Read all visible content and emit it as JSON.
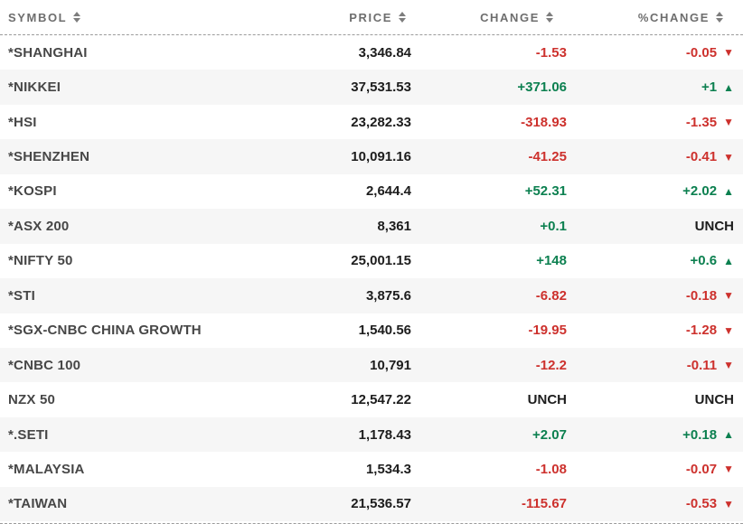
{
  "colors": {
    "up": "#0c8050",
    "down": "#cd312d",
    "neutral": "#1d1d1d"
  },
  "icons": {
    "up_arrow": "▲",
    "down_arrow": "▼",
    "sort": "sort-up-down-triangles"
  },
  "table": {
    "columns": [
      {
        "key": "symbol",
        "label": "SYMBOL"
      },
      {
        "key": "price",
        "label": "PRICE"
      },
      {
        "key": "change",
        "label": "CHANGE"
      },
      {
        "key": "pct_change",
        "label": "%CHANGE"
      }
    ],
    "rows": [
      {
        "symbol": "*SHANGHAI",
        "price": "3,346.84",
        "change": "-1.53",
        "change_dir": "down",
        "pct_change": "-0.05",
        "pct_dir": "down"
      },
      {
        "symbol": "*NIKKEI",
        "price": "37,531.53",
        "change": "+371.06",
        "change_dir": "up",
        "pct_change": "+1",
        "pct_dir": "up"
      },
      {
        "symbol": "*HSI",
        "price": "23,282.33",
        "change": "-318.93",
        "change_dir": "down",
        "pct_change": "-1.35",
        "pct_dir": "down"
      },
      {
        "symbol": "*SHENZHEN",
        "price": "10,091.16",
        "change": "-41.25",
        "change_dir": "down",
        "pct_change": "-0.41",
        "pct_dir": "down"
      },
      {
        "symbol": "*KOSPI",
        "price": "2,644.4",
        "change": "+52.31",
        "change_dir": "up",
        "pct_change": "+2.02",
        "pct_dir": "up"
      },
      {
        "symbol": "*ASX 200",
        "price": "8,361",
        "change": "+0.1",
        "change_dir": "up",
        "pct_change": "UNCH",
        "pct_dir": "unch"
      },
      {
        "symbol": "*NIFTY 50",
        "price": "25,001.15",
        "change": "+148",
        "change_dir": "up",
        "pct_change": "+0.6",
        "pct_dir": "up"
      },
      {
        "symbol": "*STI",
        "price": "3,875.6",
        "change": "-6.82",
        "change_dir": "down",
        "pct_change": "-0.18",
        "pct_dir": "down"
      },
      {
        "symbol": "*SGX-CNBC CHINA GROWTH",
        "price": "1,540.56",
        "change": "-19.95",
        "change_dir": "down",
        "pct_change": "-1.28",
        "pct_dir": "down"
      },
      {
        "symbol": "*CNBC 100",
        "price": "10,791",
        "change": "-12.2",
        "change_dir": "down",
        "pct_change": "-0.11",
        "pct_dir": "down"
      },
      {
        "symbol": "NZX 50",
        "price": "12,547.22",
        "change": "UNCH",
        "change_dir": "unch",
        "pct_change": "UNCH",
        "pct_dir": "unch"
      },
      {
        "symbol": "*.SETI",
        "price": "1,178.43",
        "change": "+2.07",
        "change_dir": "up",
        "pct_change": "+0.18",
        "pct_dir": "up"
      },
      {
        "symbol": "*MALAYSIA",
        "price": "1,534.3",
        "change": "-1.08",
        "change_dir": "down",
        "pct_change": "-0.07",
        "pct_dir": "down"
      },
      {
        "symbol": "*TAIWAN",
        "price": "21,536.57",
        "change": "-115.67",
        "change_dir": "down",
        "pct_change": "-0.53",
        "pct_dir": "down"
      }
    ]
  }
}
